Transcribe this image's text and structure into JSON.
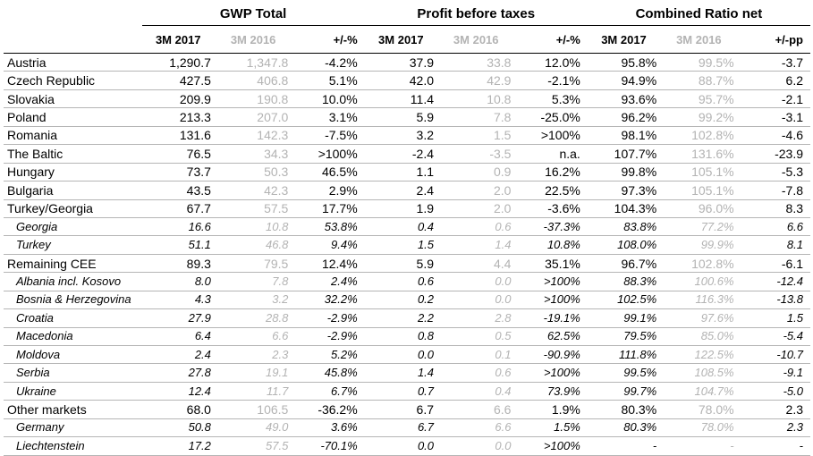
{
  "headers": {
    "groups": [
      "GWP Total",
      "Profit before taxes",
      "Combined Ratio net"
    ],
    "sub": [
      [
        "3M 2017",
        "3M 2016",
        "+/-%"
      ],
      [
        "3M 2017",
        "3M 2016",
        "+/-%"
      ],
      [
        "3M 2017",
        "3M 2016",
        "+/-pp"
      ]
    ]
  },
  "rows": [
    {
      "label": "Austria",
      "sub": false,
      "vals": [
        "1,290.7",
        "1,347.8",
        "-4.2%",
        "37.9",
        "33.8",
        "12.0%",
        "95.8%",
        "99.5%",
        "-3.7"
      ]
    },
    {
      "label": "Czech Republic",
      "sub": false,
      "vals": [
        "427.5",
        "406.8",
        "5.1%",
        "42.0",
        "42.9",
        "-2.1%",
        "94.9%",
        "88.7%",
        "6.2"
      ]
    },
    {
      "label": "Slovakia",
      "sub": false,
      "vals": [
        "209.9",
        "190.8",
        "10.0%",
        "11.4",
        "10.8",
        "5.3%",
        "93.6%",
        "95.7%",
        "-2.1"
      ]
    },
    {
      "label": "Poland",
      "sub": false,
      "vals": [
        "213.3",
        "207.0",
        "3.1%",
        "5.9",
        "7.8",
        "-25.0%",
        "96.2%",
        "99.2%",
        "-3.1"
      ]
    },
    {
      "label": "Romania",
      "sub": false,
      "vals": [
        "131.6",
        "142.3",
        "-7.5%",
        "3.2",
        "1.5",
        ">100%",
        "98.1%",
        "102.8%",
        "-4.6"
      ]
    },
    {
      "label": "The Baltic",
      "sub": false,
      "vals": [
        "76.5",
        "34.3",
        ">100%",
        "-2.4",
        "-3.5",
        "n.a.",
        "107.7%",
        "131.6%",
        "-23.9"
      ]
    },
    {
      "label": "Hungary",
      "sub": false,
      "vals": [
        "73.7",
        "50.3",
        "46.5%",
        "1.1",
        "0.9",
        "16.2%",
        "99.8%",
        "105.1%",
        "-5.3"
      ]
    },
    {
      "label": "Bulgaria",
      "sub": false,
      "vals": [
        "43.5",
        "42.3",
        "2.9%",
        "2.4",
        "2.0",
        "22.5%",
        "97.3%",
        "105.1%",
        "-7.8"
      ]
    },
    {
      "label": "Turkey/Georgia",
      "sub": false,
      "vals": [
        "67.7",
        "57.5",
        "17.7%",
        "1.9",
        "2.0",
        "-3.6%",
        "104.3%",
        "96.0%",
        "8.3"
      ]
    },
    {
      "label": "Georgia",
      "sub": true,
      "vals": [
        "16.6",
        "10.8",
        "53.8%",
        "0.4",
        "0.6",
        "-37.3%",
        "83.8%",
        "77.2%",
        "6.6"
      ]
    },
    {
      "label": "Turkey",
      "sub": true,
      "vals": [
        "51.1",
        "46.8",
        "9.4%",
        "1.5",
        "1.4",
        "10.8%",
        "108.0%",
        "99.9%",
        "8.1"
      ]
    },
    {
      "label": "Remaining CEE",
      "sub": false,
      "vals": [
        "89.3",
        "79.5",
        "12.4%",
        "5.9",
        "4.4",
        "35.1%",
        "96.7%",
        "102.8%",
        "-6.1"
      ]
    },
    {
      "label": "Albania incl. Kosovo",
      "sub": true,
      "vals": [
        "8.0",
        "7.8",
        "2.4%",
        "0.6",
        "0.0",
        ">100%",
        "88.3%",
        "100.6%",
        "-12.4"
      ]
    },
    {
      "label": "Bosnia & Herzegovina",
      "sub": true,
      "vals": [
        "4.3",
        "3.2",
        "32.2%",
        "0.2",
        "0.0",
        ">100%",
        "102.5%",
        "116.3%",
        "-13.8"
      ]
    },
    {
      "label": "Croatia",
      "sub": true,
      "vals": [
        "27.9",
        "28.8",
        "-2.9%",
        "2.2",
        "2.8",
        "-19.1%",
        "99.1%",
        "97.6%",
        "1.5"
      ]
    },
    {
      "label": "Macedonia",
      "sub": true,
      "vals": [
        "6.4",
        "6.6",
        "-2.9%",
        "0.8",
        "0.5",
        "62.5%",
        "79.5%",
        "85.0%",
        "-5.4"
      ]
    },
    {
      "label": "Moldova",
      "sub": true,
      "vals": [
        "2.4",
        "2.3",
        "5.2%",
        "0.0",
        "0.1",
        "-90.9%",
        "111.8%",
        "122.5%",
        "-10.7"
      ]
    },
    {
      "label": "Serbia",
      "sub": true,
      "vals": [
        "27.8",
        "19.1",
        "45.8%",
        "1.4",
        "0.6",
        ">100%",
        "99.5%",
        "108.5%",
        "-9.1"
      ]
    },
    {
      "label": "Ukraine",
      "sub": true,
      "vals": [
        "12.4",
        "11.7",
        "6.7%",
        "0.7",
        "0.4",
        "73.9%",
        "99.7%",
        "104.7%",
        "-5.0"
      ]
    },
    {
      "label": "Other markets",
      "sub": false,
      "vals": [
        "68.0",
        "106.5",
        "-36.2%",
        "6.7",
        "6.6",
        "1.9%",
        "80.3%",
        "78.0%",
        "2.3"
      ]
    },
    {
      "label": "Germany",
      "sub": true,
      "vals": [
        "50.8",
        "49.0",
        "3.6%",
        "6.7",
        "6.6",
        "1.5%",
        "80.3%",
        "78.0%",
        "2.3"
      ]
    },
    {
      "label": "Liechtenstein",
      "sub": true,
      "vals": [
        "17.2",
        "57.5",
        "-70.1%",
        "0.0",
        "0.0",
        ">100%",
        "-",
        "-",
        "-"
      ]
    }
  ]
}
